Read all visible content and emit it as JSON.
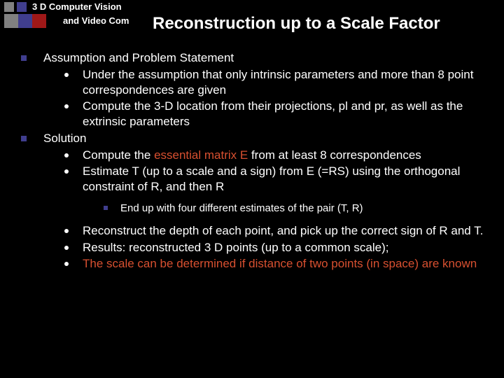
{
  "colors": {
    "background": "#000000",
    "text": "#ffffff",
    "gray_sq": "#808080",
    "purple_sq": "#403e8e",
    "red_sq": "#a01818",
    "emphasis": "#d85030"
  },
  "header": {
    "line1": "3 D Computer Vision",
    "line2_prefix": "and Video Com",
    "title": "Reconstruction up to a Scale Factor"
  },
  "content": {
    "item1_head": "Assumption and Problem Statement",
    "item1_sub1": "Under the assumption that only intrinsic parameters and more than 8 point correspondences are given",
    "item1_sub2": "Compute the 3-D location from their projections, pl and pr, as well as the extrinsic parameters",
    "item2_head": "Solution",
    "item2_sub1_a": "Compute the ",
    "item2_sub1_em": "essential matrix E",
    "item2_sub1_b": " from at least 8 correspondences",
    "item2_sub2": "Estimate T (up to a scale and a sign) from E (=RS) using the orthogonal constraint of R, and then R",
    "item2_sub2_sub1": "End up with four different estimates of the pair (T, R)",
    "item2_sub3": "Reconstruct the depth of each point, and pick up the correct sign of R and T.",
    "item2_sub4": "Results: reconstructed 3 D points (up to a common scale);",
    "item2_sub5_a": "The scale can be determined if distance of two points (in space) are known",
    "item2_sub5_b": ""
  }
}
